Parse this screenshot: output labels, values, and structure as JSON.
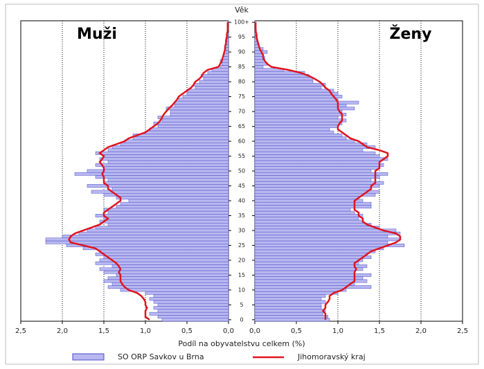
{
  "chart_data": {
    "type": "pyramid",
    "ylabel": "Věk",
    "xlabel": "Podíl na obyvatelstvu celkem (%)",
    "categories": [
      "0",
      null,
      null,
      null,
      null,
      "5",
      null,
      null,
      null,
      null,
      "10",
      null,
      null,
      null,
      null,
      "15",
      null,
      null,
      null,
      null,
      "20",
      null,
      null,
      null,
      null,
      "25",
      null,
      null,
      null,
      null,
      "30",
      null,
      null,
      null,
      null,
      "35",
      null,
      null,
      null,
      null,
      "40",
      null,
      null,
      null,
      null,
      "45",
      null,
      null,
      null,
      null,
      "50",
      null,
      null,
      null,
      null,
      "55",
      null,
      null,
      null,
      null,
      "60",
      null,
      null,
      null,
      null,
      "65",
      null,
      null,
      null,
      null,
      "70",
      null,
      null,
      null,
      null,
      "75",
      null,
      null,
      null,
      null,
      "80",
      null,
      null,
      null,
      null,
      "85",
      null,
      null,
      null,
      null,
      "90",
      null,
      null,
      null,
      null,
      "95",
      null,
      null,
      null,
      null,
      "100+"
    ],
    "grid": true,
    "panels": [
      {
        "label": "Muži",
        "xlim": [
          2.5,
          0
        ],
        "xticks": [
          {
            "value": 2.5,
            "label": "2,5"
          },
          {
            "value": 2,
            "label": "2,0"
          },
          {
            "value": 1.5,
            "label": "1,5"
          },
          {
            "value": 1,
            "label": "1,0"
          },
          {
            "value": 0.5,
            "label": "0,5"
          },
          {
            "value": 0,
            "label": "0,0"
          }
        ],
        "series": [
          {
            "name": "SO ORP Savkov u Brna",
            "color": "#b8b8f0",
            "values": [
              0.8,
              0.85,
              0.95,
              0.85,
              0.9,
              0.85,
              0.9,
              0.95,
              0.9,
              1.0,
              1.3,
              1.45,
              1.4,
              1.5,
              1.45,
              1.35,
              1.5,
              1.55,
              1.4,
              1.6,
              1.55,
              1.5,
              1.6,
              1.55,
              1.75,
              1.95,
              2.2,
              2.2,
              2.0,
              1.8,
              1.7,
              1.6,
              1.45,
              1.55,
              1.5,
              1.6,
              1.45,
              1.5,
              1.35,
              1.3,
              1.2,
              1.35,
              1.5,
              1.65,
              1.4,
              1.7,
              1.5,
              1.45,
              1.6,
              1.85,
              1.7,
              1.5,
              1.6,
              1.45,
              1.55,
              1.5,
              1.6,
              1.45,
              1.4,
              1.3,
              1.25,
              1.15,
              1.15,
              1.0,
              0.95,
              0.85,
              0.9,
              0.8,
              0.85,
              0.7,
              0.7,
              0.75,
              0.65,
              0.65,
              0.6,
              0.55,
              0.5,
              0.5,
              0.4,
              0.42,
              0.35,
              0.3,
              0.33,
              0.25,
              0.2,
              0.1,
              0.08,
              0.1,
              0.05,
              0.06,
              0.03,
              0.05,
              0.02,
              0.03,
              0.02,
              0.01,
              0.02,
              0,
              0.01,
              0,
              0.01
            ]
          },
          {
            "name": "Jihomoravský kraj",
            "color": "#e0141e",
            "values": [
              0.95,
              1.0,
              1.0,
              1.0,
              0.98,
              1.0,
              1.0,
              1.02,
              1.05,
              1.1,
              1.2,
              1.25,
              1.28,
              1.3,
              1.3,
              1.3,
              1.32,
              1.3,
              1.32,
              1.35,
              1.4,
              1.45,
              1.5,
              1.55,
              1.6,
              1.75,
              1.9,
              1.92,
              1.9,
              1.85,
              1.75,
              1.65,
              1.55,
              1.5,
              1.45,
              1.5,
              1.5,
              1.45,
              1.4,
              1.35,
              1.3,
              1.3,
              1.35,
              1.4,
              1.45,
              1.45,
              1.5,
              1.5,
              1.5,
              1.52,
              1.5,
              1.5,
              1.52,
              1.55,
              1.52,
              1.5,
              1.55,
              1.5,
              1.45,
              1.35,
              1.25,
              1.2,
              1.1,
              1.0,
              0.95,
              0.9,
              0.85,
              0.82,
              0.8,
              0.78,
              0.75,
              0.72,
              0.68,
              0.65,
              0.62,
              0.6,
              0.55,
              0.5,
              0.45,
              0.42,
              0.4,
              0.35,
              0.32,
              0.3,
              0.25,
              0.12,
              0.1,
              0.08,
              0.07,
              0.06,
              0.05,
              0.04,
              0.04,
              0.03,
              0.03,
              0.02,
              0.02,
              0.01,
              0.01,
              0.01,
              0.01
            ]
          }
        ]
      },
      {
        "label": "Ženy",
        "xlim": [
          0,
          2.5
        ],
        "xticks": [
          {
            "value": 0,
            "label": "0,0"
          },
          {
            "value": 0.5,
            "label": "0,5"
          },
          {
            "value": 1,
            "label": "1,0"
          },
          {
            "value": 1.5,
            "label": "1,5"
          },
          {
            "value": 2,
            "label": "2,0"
          },
          {
            "value": 2.5,
            "label": "2,5"
          }
        ],
        "series": [
          {
            "color": "#b8b8f0",
            "values": [
              0.9,
              0.88,
              0.82,
              0.85,
              0.8,
              0.8,
              0.85,
              0.8,
              0.85,
              1.0,
              1.1,
              1.4,
              1.2,
              1.35,
              1.3,
              1.4,
              1.2,
              1.3,
              1.35,
              1.25,
              1.3,
              1.4,
              1.35,
              1.45,
              1.55,
              1.8,
              1.6,
              1.75,
              1.6,
              1.75,
              1.7,
              1.5,
              1.4,
              1.3,
              1.25,
              1.3,
              1.2,
              1.15,
              1.4,
              1.4,
              1.3,
              1.25,
              1.45,
              1.5,
              1.4,
              1.5,
              1.55,
              1.4,
              1.5,
              1.6,
              1.4,
              1.5,
              1.55,
              1.5,
              1.6,
              1.5,
              1.45,
              1.3,
              1.45,
              1.35,
              1.2,
              1.1,
              1.05,
              0.95,
              0.9,
              1.0,
              1.05,
              1.1,
              1.0,
              1.1,
              1.05,
              1.2,
              1.1,
              1.25,
              1.0,
              1.05,
              1.0,
              0.95,
              0.8,
              0.85,
              0.7,
              0.7,
              0.65,
              0.6,
              0.35,
              0.1,
              0.15,
              0.1,
              0.12,
              0.1,
              0.15,
              0.1,
              0.05,
              0.03,
              0.02,
              0.03,
              0.01,
              0.02,
              0,
              0,
              0.01
            ]
          },
          {
            "color": "#e0141e",
            "values": [
              0.85,
              0.85,
              0.85,
              0.82,
              0.85,
              0.85,
              0.88,
              0.9,
              0.9,
              0.95,
              1.05,
              1.1,
              1.15,
              1.2,
              1.2,
              1.2,
              1.2,
              1.22,
              1.2,
              1.2,
              1.25,
              1.3,
              1.35,
              1.4,
              1.5,
              1.6,
              1.7,
              1.75,
              1.75,
              1.7,
              1.55,
              1.45,
              1.35,
              1.3,
              1.3,
              1.25,
              1.25,
              1.2,
              1.2,
              1.2,
              1.2,
              1.25,
              1.3,
              1.35,
              1.4,
              1.4,
              1.45,
              1.45,
              1.45,
              1.45,
              1.45,
              1.5,
              1.5,
              1.5,
              1.55,
              1.6,
              1.6,
              1.5,
              1.35,
              1.3,
              1.25,
              1.15,
              1.1,
              1.05,
              1.0,
              1.0,
              1.02,
              1.05,
              1.05,
              1.05,
              1.02,
              1.0,
              1.0,
              1.0,
              0.98,
              0.95,
              0.92,
              0.9,
              0.85,
              0.82,
              0.78,
              0.72,
              0.65,
              0.55,
              0.4,
              0.2,
              0.15,
              0.12,
              0.1,
              0.1,
              0.08,
              0.06,
              0.05,
              0.04,
              0.03,
              0.02,
              0.02,
              0.01,
              0.01,
              0.01,
              0.01
            ]
          }
        ]
      }
    ]
  }
}
